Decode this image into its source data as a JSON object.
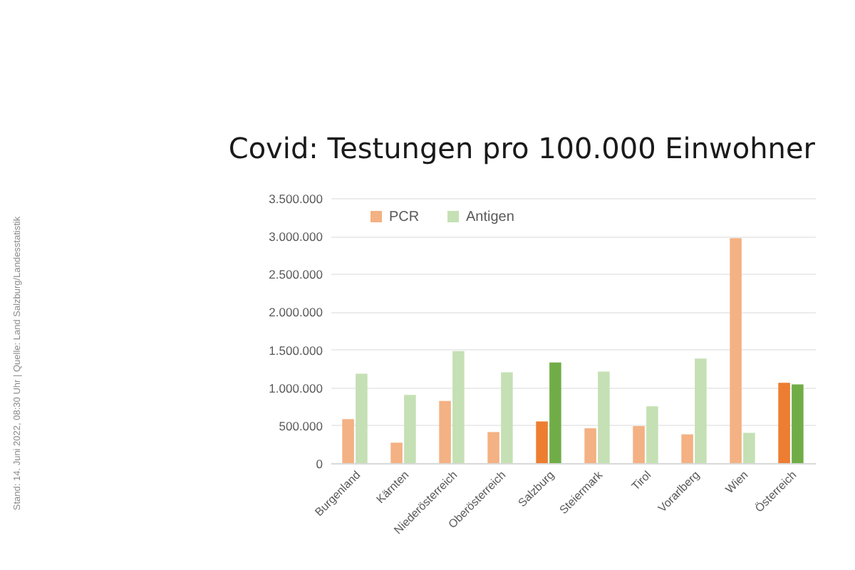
{
  "chart_data": {
    "type": "bar",
    "title": "Covid: Testungen pro 100.000 Einwohner",
    "categories": [
      "Burgenland",
      "Kärnten",
      "Niederösterreich",
      "Oberösterreich",
      "Salzburg",
      "Steiermark",
      "Tirol",
      "Vorarlberg",
      "Wien",
      "Österreich"
    ],
    "series": [
      {
        "name": "PCR",
        "color": "#f4b183",
        "colors": [
          "#f4b183",
          "#f4b183",
          "#f4b183",
          "#f4b183",
          "#ed7d31",
          "#f4b183",
          "#f4b183",
          "#f4b183",
          "#f4b183",
          "#ed7d31"
        ],
        "values": [
          580000,
          270000,
          820000,
          410000,
          550000,
          460000,
          490000,
          380000,
          2970000,
          1060000
        ]
      },
      {
        "name": "Antigen",
        "color": "#c5e0b4",
        "colors": [
          "#c5e0b4",
          "#c5e0b4",
          "#c5e0b4",
          "#c5e0b4",
          "#70ad47",
          "#c5e0b4",
          "#c5e0b4",
          "#c5e0b4",
          "#c5e0b4",
          "#70ad47"
        ],
        "values": [
          1180000,
          900000,
          1480000,
          1200000,
          1330000,
          1210000,
          750000,
          1380000,
          400000,
          1040000
        ]
      }
    ],
    "ylim": [
      0,
      3500000
    ],
    "yticks": [
      0,
      {
        "value": 500000,
        "label": "500.000"
      },
      {
        "value": 1000000,
        "label": "1.000.000"
      },
      {
        "value": 1500000,
        "label": "1.500.000"
      },
      {
        "value": 2000000,
        "label": "2.000.000"
      },
      {
        "value": 2500000,
        "label": "2.500.000"
      },
      {
        "value": 3000000,
        "label": "3.000.000"
      },
      {
        "value": 3500000,
        "label": "3.500.000"
      }
    ],
    "grid": "y",
    "legend": "top left",
    "annotations": [
      "Stand: 14. Juni 2022, 08:30 Uhr | Quelle: Land Salzburg/Landesstatistik"
    ]
  }
}
